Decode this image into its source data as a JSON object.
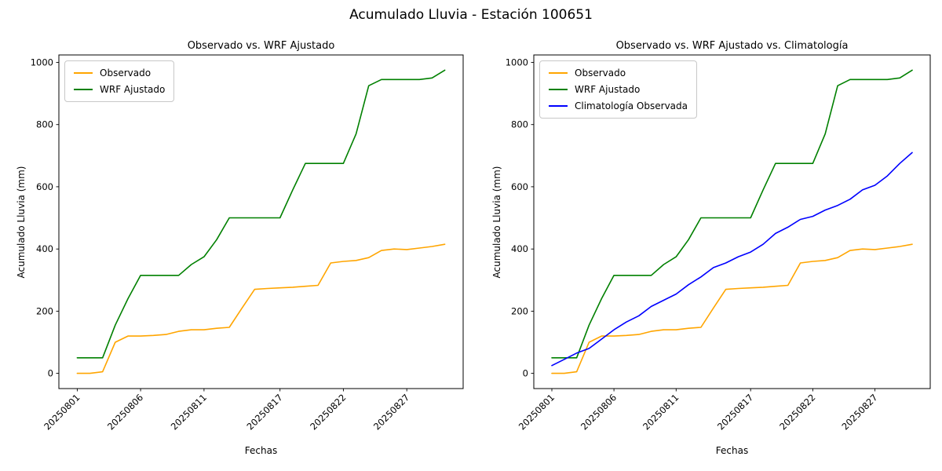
{
  "figure": {
    "title": "Acumulado Lluvia - Estación 100651"
  },
  "chart_data": [
    {
      "type": "line",
      "title": "Observado vs. WRF Ajustado",
      "xlabel": "Fechas",
      "ylabel": "Acumulado Lluvia (mm)",
      "ylim": [
        -49,
        1024
      ],
      "yticks": [
        0,
        200,
        400,
        600,
        800,
        1000
      ],
      "legend_position": "upper-left",
      "grid": false,
      "x": [
        "20250801",
        "20250802",
        "20250803",
        "20250804",
        "20250805",
        "20250806",
        "20250807",
        "20250808",
        "20250809",
        "20250810",
        "20250811",
        "20250812",
        "20250813",
        "20250814",
        "20250815",
        "20250816",
        "20250817",
        "20250818",
        "20250819",
        "20250820",
        "20250821",
        "20250822",
        "20250823",
        "20250824",
        "20250825",
        "20250826",
        "20250827",
        "20250828",
        "20250829",
        "20250830"
      ],
      "xtick_labels": [
        "20250801",
        "20250806",
        "20250811",
        "20250817",
        "20250822",
        "20250827"
      ],
      "series": [
        {
          "name": "Observado",
          "color": "#ffa500",
          "values": [
            0,
            0,
            5,
            100,
            120,
            120,
            122,
            125,
            135,
            140,
            140,
            145,
            148,
            210,
            270,
            273,
            275,
            277,
            280,
            283,
            355,
            360,
            363,
            372,
            395,
            400,
            398,
            403,
            408,
            415
          ]
        },
        {
          "name": "WRF Ajustado",
          "color": "#008000",
          "values": [
            50,
            50,
            50,
            155,
            240,
            315,
            315,
            315,
            315,
            350,
            375,
            430,
            500,
            500,
            500,
            500,
            500,
            590,
            675,
            675,
            675,
            675,
            770,
            925,
            945,
            945,
            945,
            945,
            950,
            975
          ]
        }
      ]
    },
    {
      "type": "line",
      "title": "Observado vs. WRF Ajustado vs. Climatología",
      "xlabel": "Fechas",
      "ylabel": "Acumulado Lluvia (mm)",
      "ylim": [
        -49,
        1024
      ],
      "yticks": [
        0,
        200,
        400,
        600,
        800,
        1000
      ],
      "legend_position": "upper-left",
      "grid": false,
      "x": [
        "20250801",
        "20250802",
        "20250803",
        "20250804",
        "20250805",
        "20250806",
        "20250807",
        "20250808",
        "20250809",
        "20250810",
        "20250811",
        "20250812",
        "20250813",
        "20250814",
        "20250815",
        "20250816",
        "20250817",
        "20250818",
        "20250819",
        "20250820",
        "20250821",
        "20250822",
        "20250823",
        "20250824",
        "20250825",
        "20250826",
        "20250827",
        "20250828",
        "20250829",
        "20250830"
      ],
      "xtick_labels": [
        "20250801",
        "20250806",
        "20250811",
        "20250817",
        "20250822",
        "20250827"
      ],
      "series": [
        {
          "name": "Observado",
          "color": "#ffa500",
          "values": [
            0,
            0,
            5,
            100,
            120,
            120,
            122,
            125,
            135,
            140,
            140,
            145,
            148,
            210,
            270,
            273,
            275,
            277,
            280,
            283,
            355,
            360,
            363,
            372,
            395,
            400,
            398,
            403,
            408,
            415
          ]
        },
        {
          "name": "WRF Ajustado",
          "color": "#008000",
          "values": [
            50,
            50,
            50,
            155,
            240,
            315,
            315,
            315,
            315,
            350,
            375,
            430,
            500,
            500,
            500,
            500,
            500,
            590,
            675,
            675,
            675,
            675,
            770,
            925,
            945,
            945,
            945,
            945,
            950,
            975
          ]
        },
        {
          "name": "Climatología Observada",
          "color": "#0000ff",
          "values": [
            25,
            45,
            65,
            80,
            110,
            140,
            165,
            185,
            215,
            235,
            255,
            285,
            310,
            340,
            355,
            375,
            390,
            415,
            450,
            470,
            495,
            505,
            525,
            540,
            560,
            590,
            605,
            635,
            675,
            710
          ]
        }
      ]
    }
  ]
}
